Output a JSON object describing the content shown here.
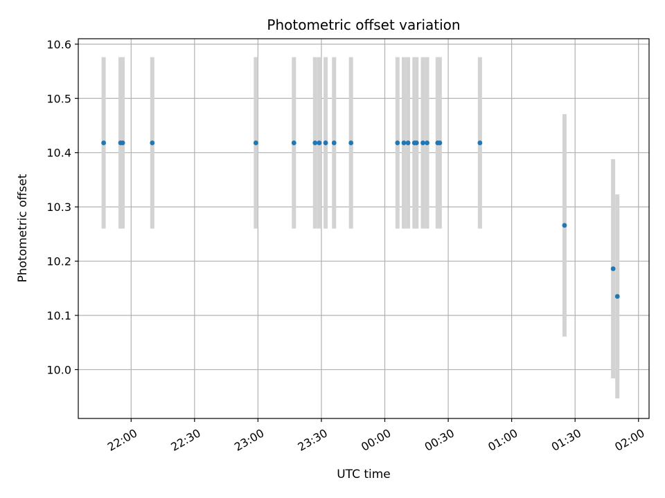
{
  "chart_data": {
    "type": "scatter",
    "title": "Photometric offset variation",
    "xlabel": "UTC time",
    "ylabel": "Photometric offset",
    "x_axis_type": "time",
    "xlim": [
      "21:35",
      "02:05"
    ],
    "xticks": [
      "22:00",
      "22:30",
      "23:00",
      "23:30",
      "00:00",
      "00:30",
      "01:00",
      "01:30",
      "02:00"
    ],
    "ylim": [
      9.91,
      10.61
    ],
    "yticks": [
      "10.0",
      "10.1",
      "10.2",
      "10.3",
      "10.4",
      "10.5",
      "10.6"
    ],
    "grid": true,
    "legend": "none",
    "colors": {
      "points": "#1f77b4",
      "error_bars": "#d3d3d3",
      "grid": "#b0b0b0"
    },
    "points": [
      {
        "x": "21:47",
        "y": 10.418,
        "yerr": 0.158
      },
      {
        "x": "21:55",
        "y": 10.418,
        "yerr": 0.158
      },
      {
        "x": "21:56",
        "y": 10.418,
        "yerr": 0.158
      },
      {
        "x": "22:10",
        "y": 10.418,
        "yerr": 0.158
      },
      {
        "x": "22:59",
        "y": 10.418,
        "yerr": 0.158
      },
      {
        "x": "23:17",
        "y": 10.418,
        "yerr": 0.158
      },
      {
        "x": "23:27",
        "y": 10.418,
        "yerr": 0.158
      },
      {
        "x": "23:29",
        "y": 10.418,
        "yerr": 0.158
      },
      {
        "x": "23:32",
        "y": 10.418,
        "yerr": 0.158
      },
      {
        "x": "23:36",
        "y": 10.418,
        "yerr": 0.158
      },
      {
        "x": "23:44",
        "y": 10.418,
        "yerr": 0.158
      },
      {
        "x": "00:06",
        "y": 10.418,
        "yerr": 0.158
      },
      {
        "x": "00:09",
        "y": 10.418,
        "yerr": 0.158
      },
      {
        "x": "00:11",
        "y": 10.418,
        "yerr": 0.158
      },
      {
        "x": "00:14",
        "y": 10.418,
        "yerr": 0.158
      },
      {
        "x": "00:15",
        "y": 10.418,
        "yerr": 0.158
      },
      {
        "x": "00:18",
        "y": 10.418,
        "yerr": 0.158
      },
      {
        "x": "00:20",
        "y": 10.418,
        "yerr": 0.158
      },
      {
        "x": "00:25",
        "y": 10.418,
        "yerr": 0.158
      },
      {
        "x": "00:26",
        "y": 10.418,
        "yerr": 0.158
      },
      {
        "x": "00:45",
        "y": 10.418,
        "yerr": 0.158
      },
      {
        "x": "01:25",
        "y": 10.266,
        "yerr": 0.205
      },
      {
        "x": "01:48",
        "y": 10.186,
        "yerr": 0.202
      },
      {
        "x": "01:50",
        "y": 10.135,
        "yerr": 0.188
      }
    ]
  }
}
